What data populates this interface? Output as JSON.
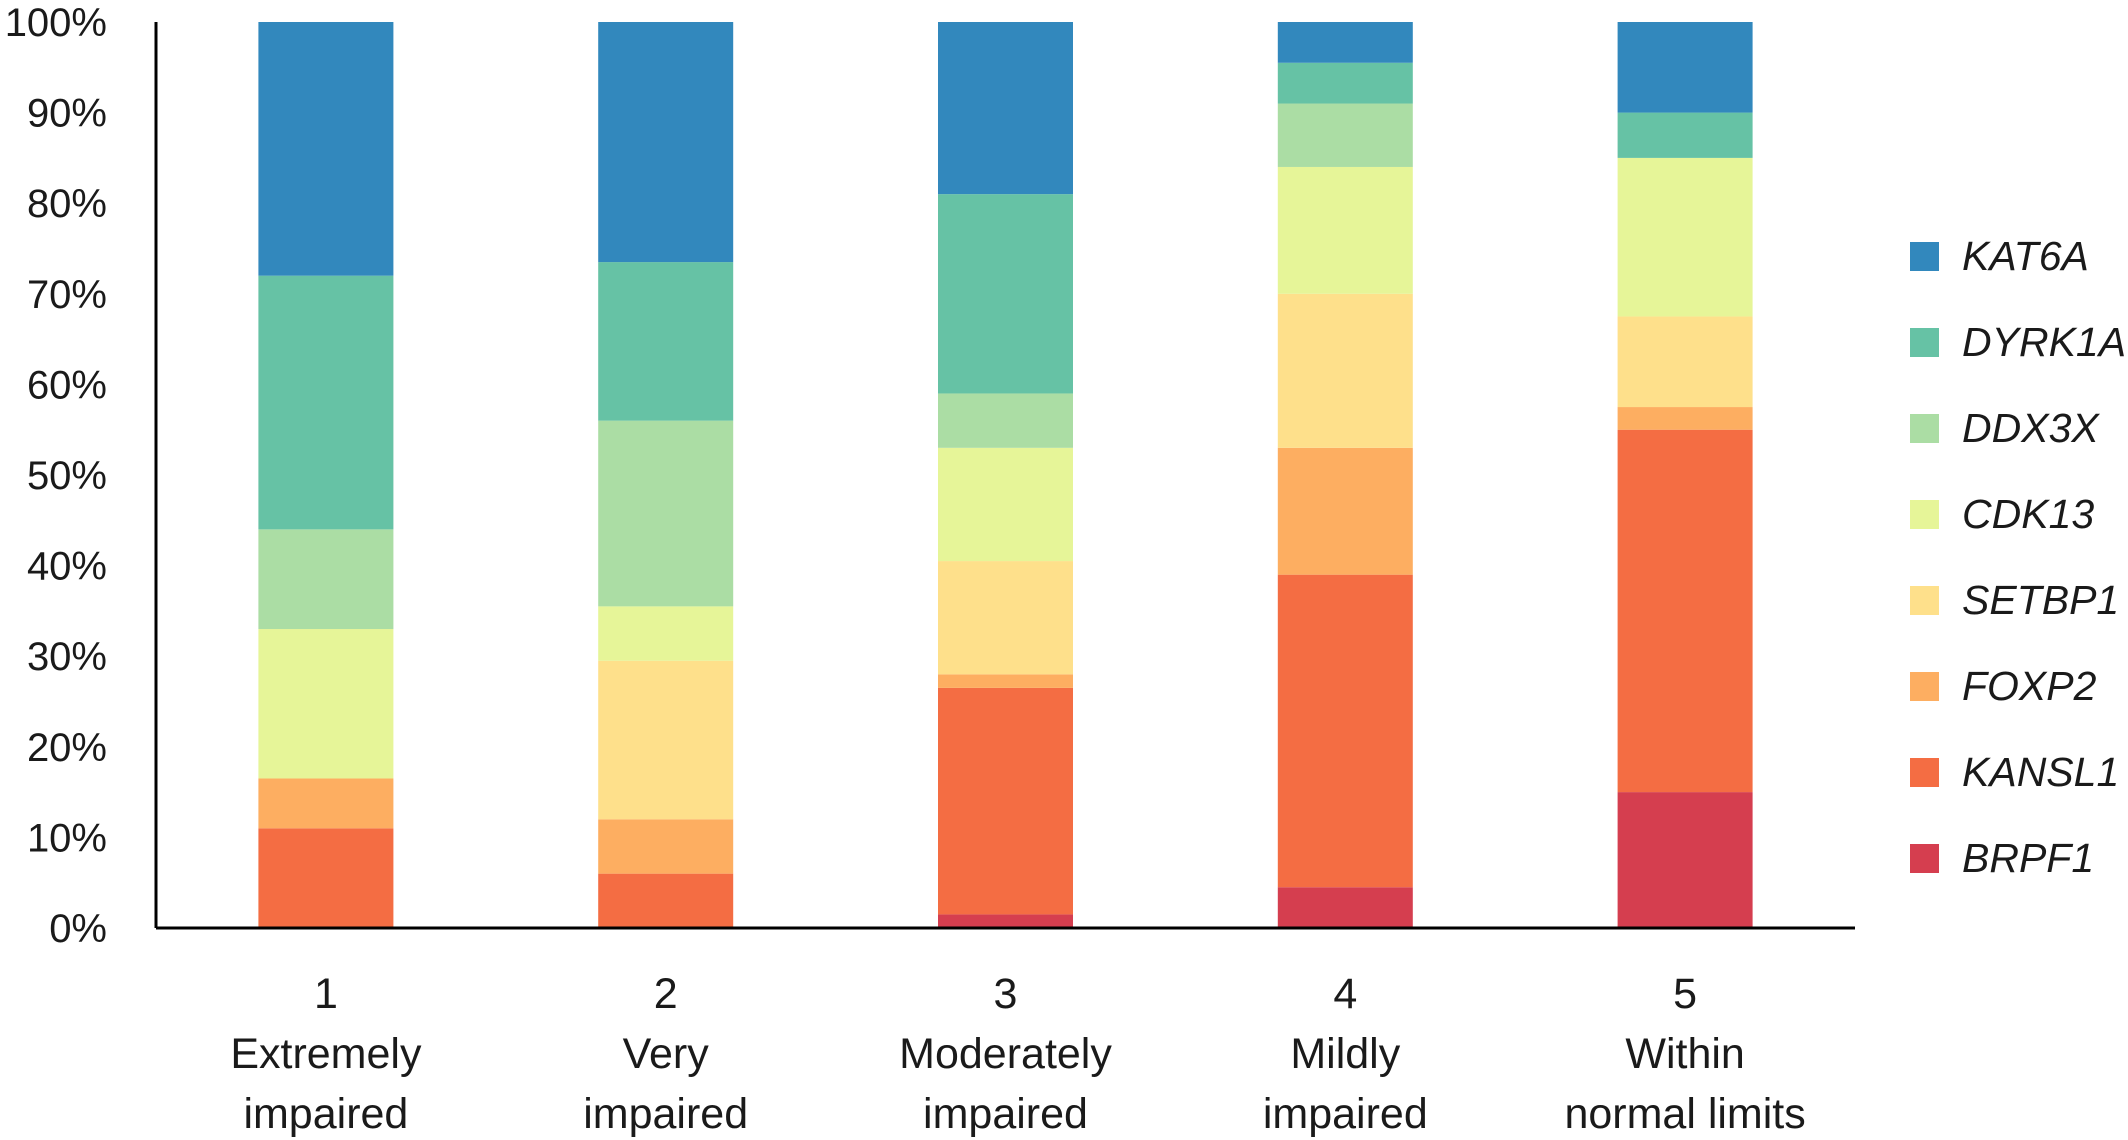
{
  "chart_data": {
    "type": "bar",
    "stacked": true,
    "normalized": true,
    "ylim": [
      0,
      100
    ],
    "y_ticks": [
      "0%",
      "10%",
      "20%",
      "30%",
      "40%",
      "50%",
      "60%",
      "70%",
      "80%",
      "90%",
      "100%"
    ],
    "categories": [
      [
        "1",
        "Extremely",
        "impaired"
      ],
      [
        "2",
        "Very",
        "impaired"
      ],
      [
        "3",
        "Moderately",
        "impaired"
      ],
      [
        "4",
        "Mildly",
        "impaired"
      ],
      [
        "5",
        "Within",
        "normal limits"
      ]
    ],
    "legend_position": "right",
    "grid": false,
    "series": [
      {
        "name": "BRPF1",
        "color": "#d53e4f",
        "values": [
          0,
          0,
          1.5,
          4.5,
          15
        ]
      },
      {
        "name": "KANSL1",
        "color": "#f46d43",
        "values": [
          11,
          6,
          25,
          34.5,
          40
        ]
      },
      {
        "name": "FOXP2",
        "color": "#fdae61",
        "values": [
          5.5,
          6,
          1.5,
          14,
          2.5
        ]
      },
      {
        "name": "SETBP1",
        "color": "#fee08b",
        "values": [
          0,
          17.5,
          12.5,
          17,
          10
        ]
      },
      {
        "name": "CDK13",
        "color": "#e6f598",
        "values": [
          16.5,
          6,
          12.5,
          14,
          17.5
        ]
      },
      {
        "name": "DDX3X",
        "color": "#abdda4",
        "values": [
          11,
          20.5,
          6,
          7,
          0
        ]
      },
      {
        "name": "DYRK1A",
        "color": "#66c2a5",
        "values": [
          28,
          17.5,
          22,
          4.5,
          5
        ]
      },
      {
        "name": "KAT6A",
        "color": "#3288bd",
        "values": [
          28,
          26.5,
          19,
          4.5,
          10
        ]
      }
    ]
  }
}
